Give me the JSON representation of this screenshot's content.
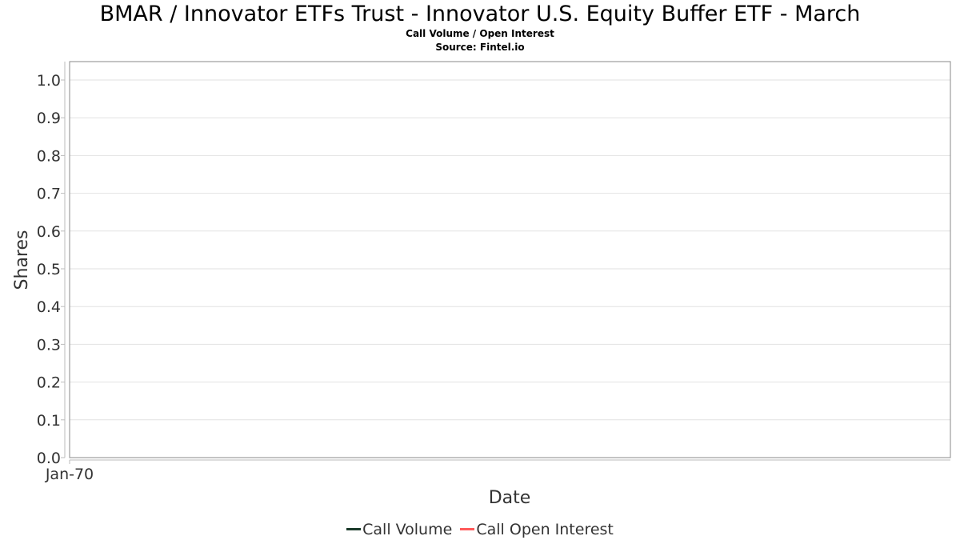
{
  "chart_data": {
    "type": "line",
    "title": "BMAR / Innovator ETFs Trust - Innovator U.S. Equity Buffer ETF - March",
    "subtitle": "Call Volume / Open Interest",
    "source": "Source: Fintel.io",
    "xlabel": "Date",
    "ylabel": "Shares",
    "x_tick_labels": [
      "Jan-70"
    ],
    "y_ticks": [
      "0.0",
      "0.1",
      "0.2",
      "0.3",
      "0.4",
      "0.5",
      "0.6",
      "0.7",
      "0.8",
      "0.9",
      "1.0"
    ],
    "ylim": [
      0,
      1.0
    ],
    "grid": true,
    "legend_position": "bottom",
    "series": [
      {
        "name": "Call Volume",
        "color": "#1a3a2a",
        "values": []
      },
      {
        "name": "Call Open Interest",
        "color": "#ff5a5a",
        "values": []
      }
    ]
  }
}
